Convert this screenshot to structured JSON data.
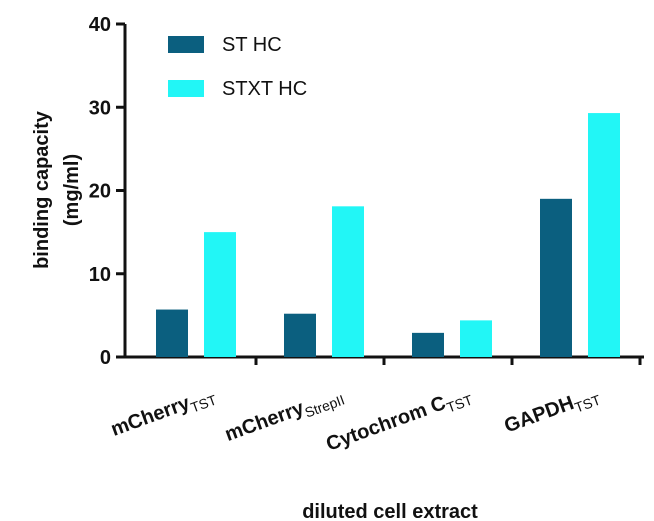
{
  "chart_data": {
    "type": "bar",
    "ylabel": [
      "binding capacity",
      "(mg/ml)"
    ],
    "xlabel": "diluted cell extract",
    "categories": [
      "mCherry",
      "mCherry",
      "Cytochrom C",
      "GAPDH"
    ],
    "category_subscripts": [
      "TST",
      "StrepII",
      "TST",
      "TST"
    ],
    "series": [
      {
        "name": "ST HC",
        "color": "#0b5f7f",
        "values": [
          5.7,
          5.2,
          2.9,
          19.0
        ]
      },
      {
        "name": "STXT HC",
        "color": "#22f6f6",
        "values": [
          15.0,
          18.1,
          4.4,
          29.3
        ]
      }
    ],
    "ylim": [
      0,
      40
    ],
    "yticks": [
      0,
      10,
      20,
      30,
      40
    ],
    "grid": false,
    "legend": "top-left"
  }
}
